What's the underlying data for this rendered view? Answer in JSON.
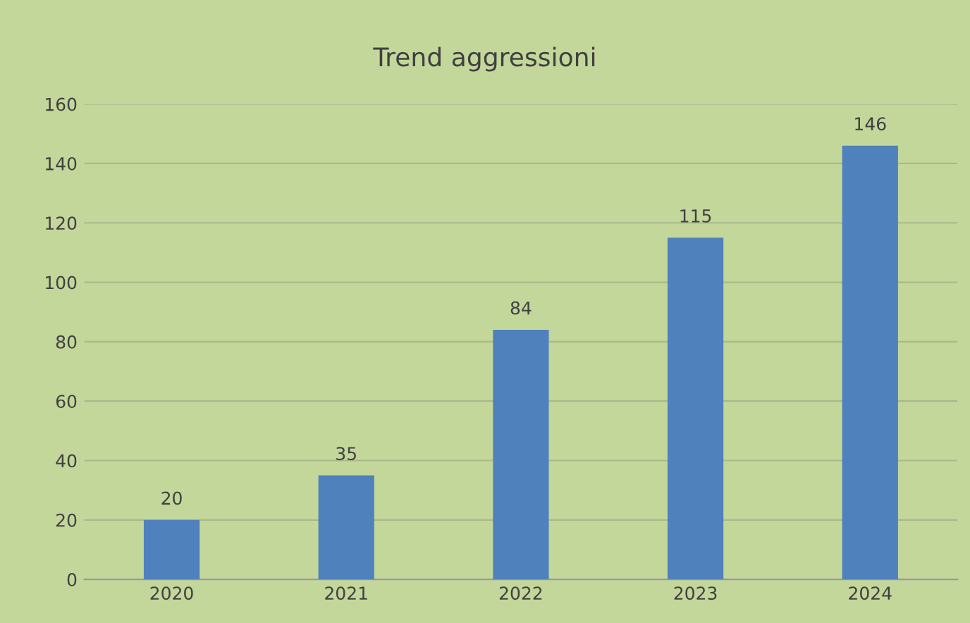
{
  "chart_data": {
    "type": "bar",
    "title": "Trend aggressioni",
    "categories": [
      "2020",
      "2021",
      "2022",
      "2023",
      "2024"
    ],
    "values": [
      20,
      35,
      84,
      115,
      146
    ],
    "color": "#4f81bd",
    "ylim": [
      0,
      160
    ],
    "yticks": [
      0,
      20,
      40,
      60,
      80,
      100,
      120,
      140,
      160
    ],
    "grid": "y",
    "data_labels": true,
    "legend": false
  }
}
